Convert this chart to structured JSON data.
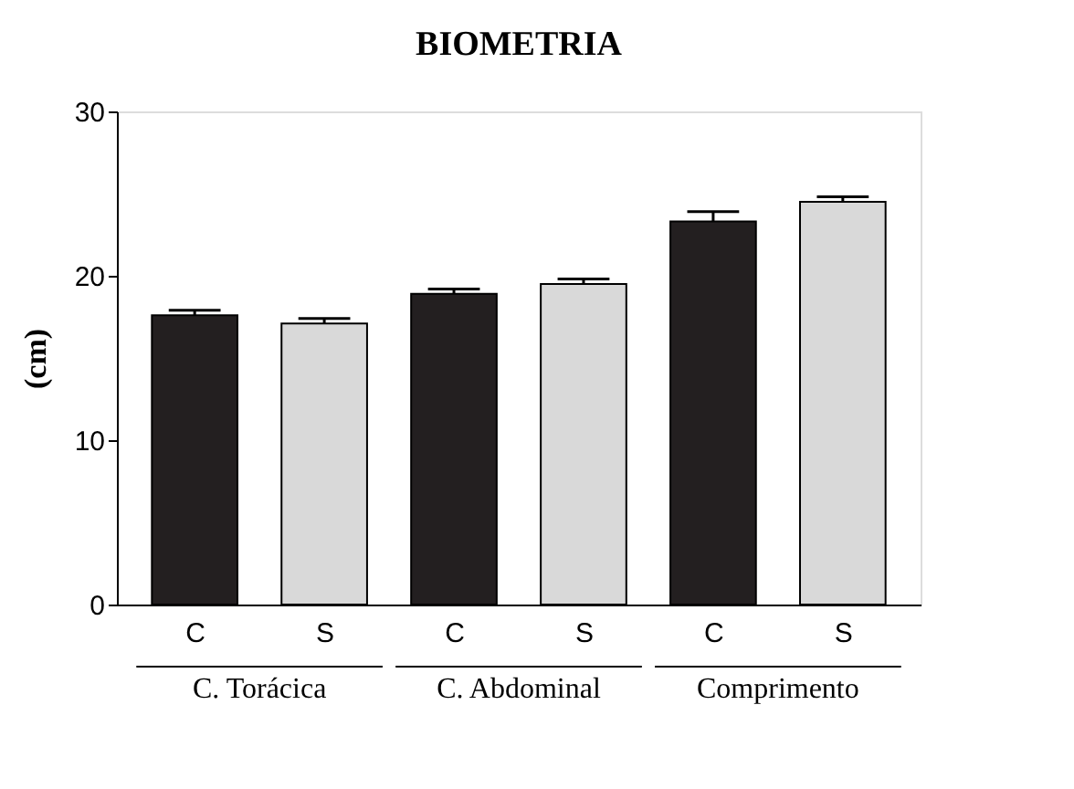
{
  "chart_data": {
    "type": "bar",
    "title": "BIOMETRIA",
    "ylabel": "(cm)",
    "categories": [
      "C",
      "S",
      "C",
      "S",
      "C",
      "S"
    ],
    "values": [
      17.6,
      17.1,
      18.9,
      19.5,
      23.3,
      24.5
    ],
    "errors": [
      [
        17.6,
        17.9
      ],
      [
        17.1,
        17.4
      ],
      [
        18.9,
        19.2
      ],
      [
        19.5,
        19.8
      ],
      [
        23.3,
        23.9
      ],
      [
        24.5,
        24.8
      ]
    ],
    "colors": [
      "#231f20",
      "#d9d9d9",
      "#231f20",
      "#d9d9d9",
      "#231f20",
      "#d9d9d9"
    ],
    "annotations": [
      "C. Torácica",
      "C. Abdominal",
      "Comprimento"
    ],
    "ylim": [
      0,
      30
    ],
    "yticks": [
      0,
      10,
      20,
      30
    ],
    "grid": false
  }
}
